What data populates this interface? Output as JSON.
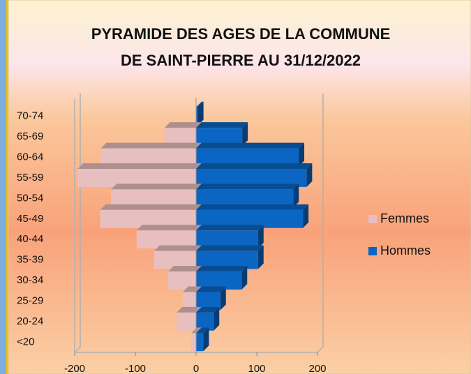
{
  "chart_data": {
    "type": "bar",
    "orientation": "horizontal",
    "title": [
      "PYRAMIDE DES AGES DE LA COMMUNE",
      "DE SAINT-PIERRE AU 31/12/2022"
    ],
    "categories": [
      "<20",
      "20-24",
      "25-29",
      "30-34",
      "35-39",
      "40-44",
      "45-49",
      "50-54",
      "55-59",
      "60-64",
      "65-69",
      "70-74"
    ],
    "series": [
      {
        "name": "Femmes",
        "color": "#e8bfbf",
        "values": [
          -8,
          -32,
          -22,
          -46,
          -69,
          -98,
          -158,
          -140,
          -195,
          -157,
          -52,
          0
        ]
      },
      {
        "name": "Hommes",
        "color": "#0b65c2",
        "values": [
          12,
          29,
          40,
          75,
          102,
          102,
          176,
          160,
          182,
          169,
          76,
          3
        ]
      }
    ],
    "xlim": [
      -200,
      200
    ],
    "xticks": [
      -200,
      -100,
      0,
      100,
      200
    ],
    "legend": "right",
    "grid": false
  }
}
